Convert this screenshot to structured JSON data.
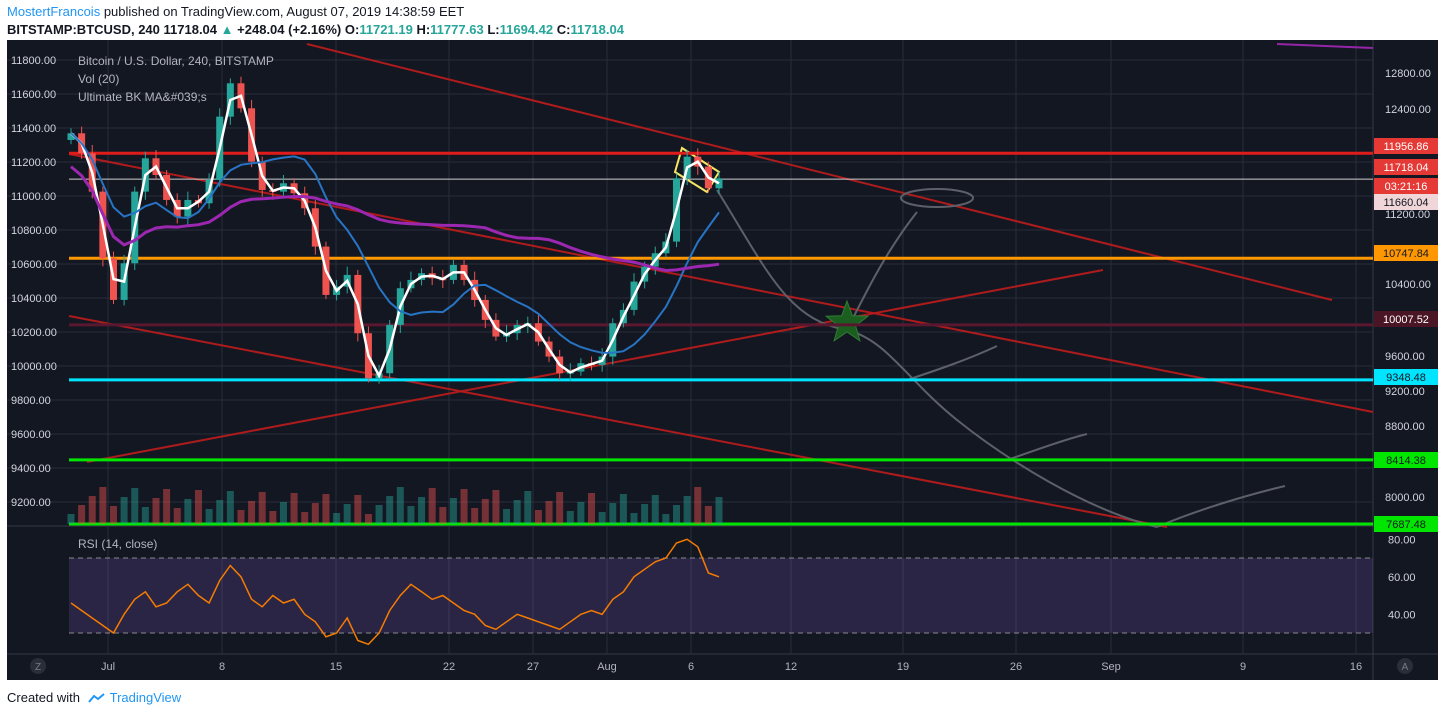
{
  "header": {
    "author": "MostertFrancois",
    "published_text": "published on TradingView.com, August 07, 2019 14:38:59 EET",
    "symbol": "BITSTAMP:BTCUSD, 240",
    "last": "11718.04",
    "change_arrow": "▲",
    "change": "+248.04 (+2.16%)",
    "o_label": "O:",
    "o": "11721.19",
    "h_label": "H:",
    "h": "11777.63",
    "l_label": "L:",
    "l": "11694.42",
    "c_label": "C:",
    "c": "11718.04"
  },
  "legend": {
    "main": "Bitcoin / U.S. Dollar, 240, BITSTAMP",
    "vol": "Vol (20)",
    "ma": "Ultimate BK MA&#039;s",
    "rsi": "RSI (14, close)"
  },
  "footer": {
    "created_with": "Created with",
    "brand": "TradingView"
  },
  "colors": {
    "background": "#131722",
    "grid": "#2a2e39",
    "up": "#26a69a",
    "down": "#ef5350",
    "ma_fast": "#ffffff",
    "ma_mid": "#2874c4",
    "ma_slow": "#9c27b0",
    "rsi_line": "#f57c00",
    "rsi_band": "#7e57c2"
  },
  "chart_data": [
    {
      "type": "candlestick",
      "x_ticks": [
        "Jul",
        "8",
        "15",
        "22",
        "27",
        "Aug",
        "6",
        "12",
        "19",
        "26",
        "Sep",
        "9",
        "16"
      ],
      "y_ticks_left": [
        "11800.00",
        "11600.00",
        "11400.00",
        "11200.00",
        "11000.00",
        "10800.00",
        "10600.00",
        "10400.00",
        "10200.00",
        "10000.00",
        "9800.00",
        "9600.00",
        "9400.00",
        "9200.00"
      ],
      "y_ticks_right": [
        "12800.00",
        "12400.00",
        "11200.00",
        "10400.00",
        "9600.00",
        "9200.00",
        "8800.00",
        "8000.00"
      ],
      "right_price_labels": [
        {
          "text": "11956.86",
          "color": "#e53935"
        },
        {
          "text": "11718.04",
          "color": "#e53935"
        },
        {
          "text": "03:21:16",
          "color": "#e53935"
        },
        {
          "text": "11660.04",
          "color": "#f0d6d9"
        },
        {
          "text": "10747.84",
          "color": "#ff9800"
        },
        {
          "text": "10007.52",
          "color": "#4a1524"
        },
        {
          "text": "9348.48",
          "color": "#00e5ff"
        },
        {
          "text": "8414.38",
          "color": "#00e600"
        },
        {
          "text": "7687.48",
          "color": "#00e600"
        }
      ],
      "horizontal_levels": [
        {
          "price": 11280,
          "color": "#e01b1b"
        },
        {
          "price": 11125,
          "color": "#cfcfcf"
        },
        {
          "price": 10650,
          "color": "#ff9800"
        },
        {
          "price": 10250,
          "color": "#5a1830"
        },
        {
          "price": 9920,
          "color": "#00e5ff"
        },
        {
          "price": 9440,
          "color": "#00e600"
        },
        {
          "price": 9055,
          "color": "#00e600"
        }
      ],
      "ylim_left": [
        9055,
        11900
      ],
      "price_series": [
        11400,
        11280,
        11050,
        10650,
        10400,
        10620,
        11050,
        11250,
        11150,
        11000,
        10900,
        11000,
        10980,
        11120,
        11500,
        11700,
        11550,
        11230,
        11060,
        11050,
        11100,
        11040,
        10950,
        10720,
        10430,
        10480,
        10550,
        10200,
        9930,
        9960,
        10250,
        10470,
        10520,
        10560,
        10530,
        10520,
        10610,
        10520,
        10400,
        10280,
        10180,
        10200,
        10250,
        10260,
        10150,
        10060,
        9960,
        9970,
        10020,
        10010,
        10060,
        10260,
        10340,
        10510,
        10600,
        10680,
        10750,
        11130,
        11260,
        11200,
        11070,
        11130
      ]
    },
    {
      "type": "line",
      "title": "RSI (14, close)",
      "y_ticks": [
        "80.00",
        "60.00",
        "40.00"
      ],
      "ylim": [
        22,
        86
      ],
      "bands": [
        70,
        30
      ],
      "values": [
        46,
        42,
        38,
        34,
        30,
        40,
        48,
        52,
        44,
        46,
        52,
        56,
        50,
        46,
        58,
        66,
        60,
        48,
        44,
        50,
        46,
        48,
        40,
        36,
        28,
        30,
        38,
        26,
        24,
        30,
        42,
        50,
        56,
        52,
        48,
        50,
        46,
        42,
        40,
        34,
        32,
        36,
        40,
        38,
        36,
        34,
        32,
        36,
        40,
        42,
        40,
        48,
        52,
        60,
        64,
        68,
        70,
        78,
        80,
        76,
        62,
        60
      ]
    }
  ]
}
